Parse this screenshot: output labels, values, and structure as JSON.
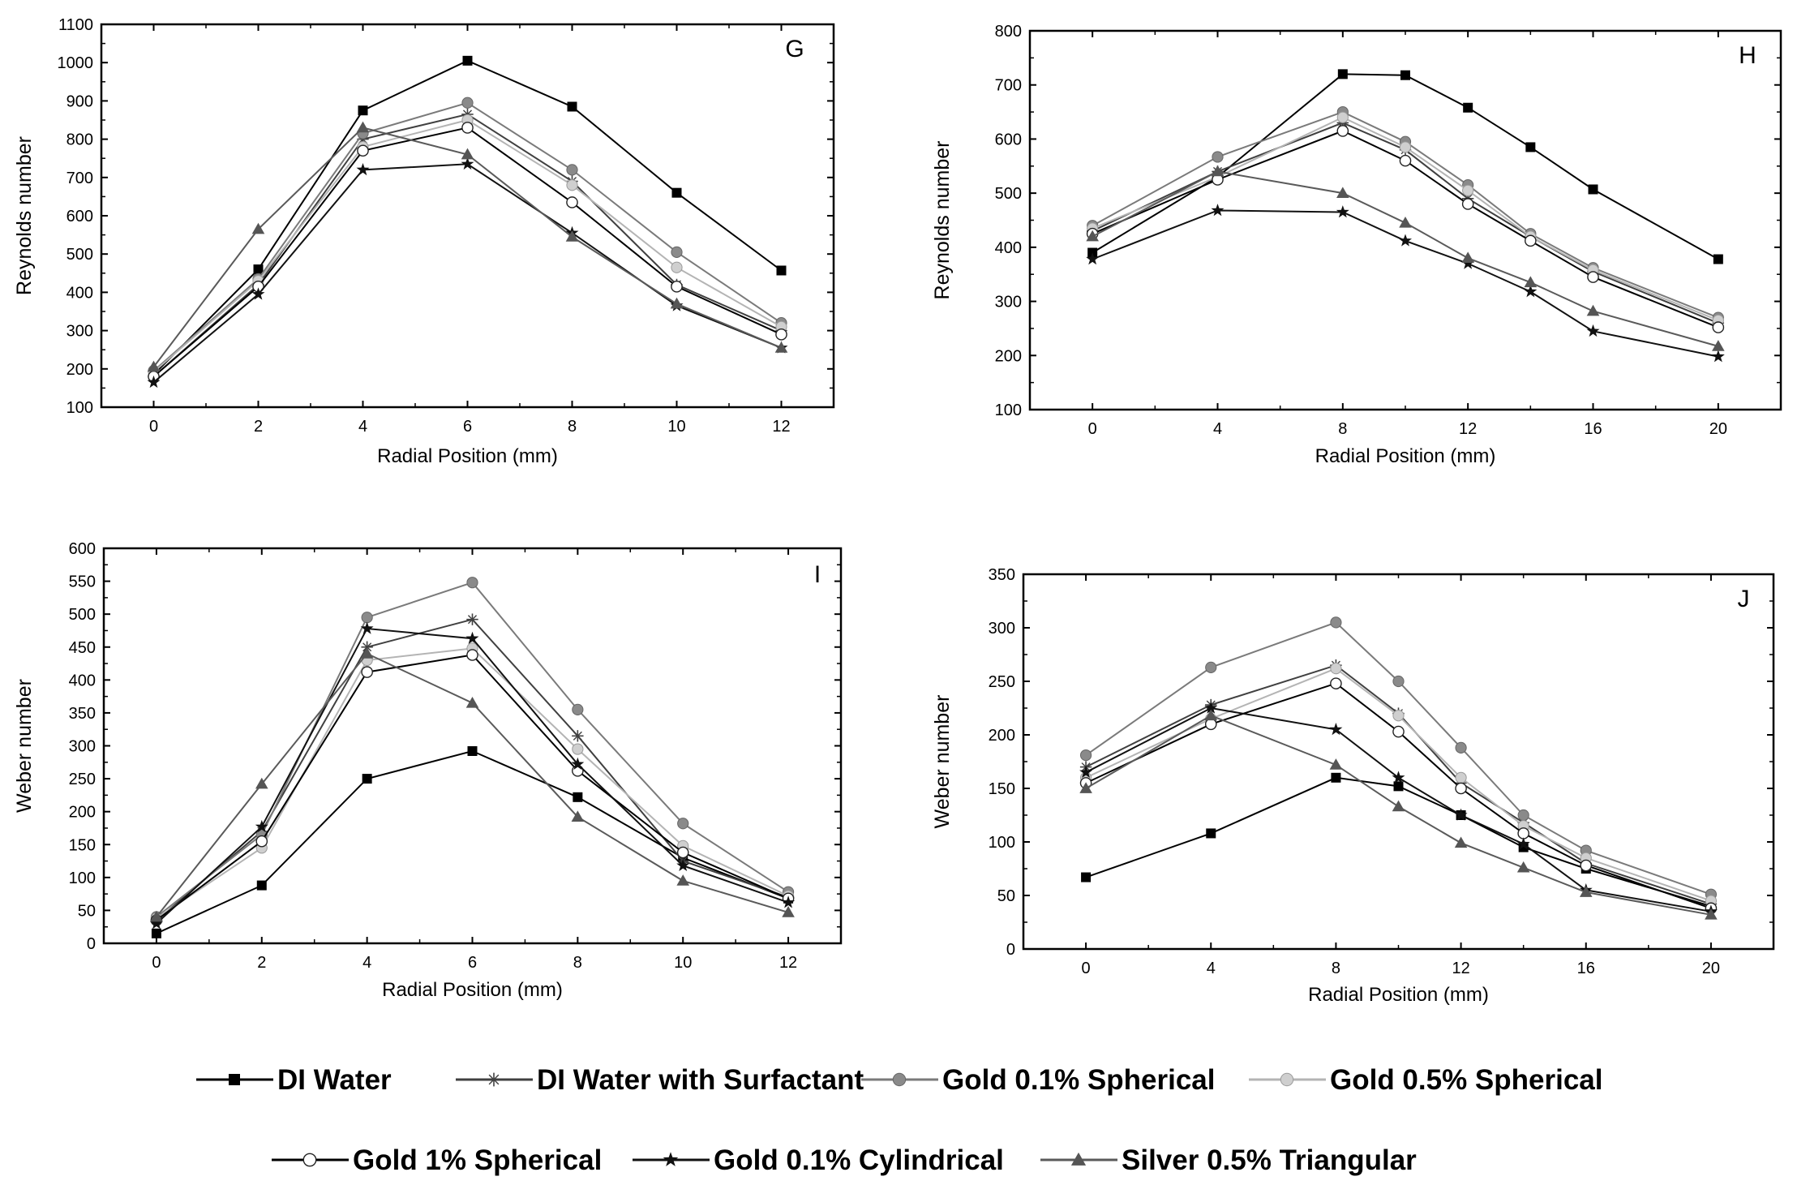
{
  "legend": [
    {
      "key": "dw",
      "label": "DI Water",
      "color": "#000000",
      "marker": "square"
    },
    {
      "key": "dws",
      "label": "DI Water with Surfactant",
      "color": "#404040",
      "marker": "plus"
    },
    {
      "key": "g01s",
      "label": "Gold 0.1% Spherical",
      "color": "#7a7a7a",
      "marker": "circle-filled"
    },
    {
      "key": "g05s",
      "label": "Gold 0.5% Spherical",
      "color": "#b4b4b4",
      "marker": "circle-light"
    },
    {
      "key": "g1s",
      "label": "Gold 1% Spherical",
      "color": "#000000",
      "marker": "circle-open"
    },
    {
      "key": "g01c",
      "label": "Gold 0.1% Cylindrical",
      "color": "#111111",
      "marker": "star"
    },
    {
      "key": "s05t",
      "label": "Silver 0.5% Triangular",
      "color": "#5a5a5a",
      "marker": "triangle"
    }
  ],
  "chart_data": [
    {
      "type": "line",
      "panel": "G",
      "xlabel": "Radial Position (mm)",
      "ylabel": "Reynolds number",
      "x": [
        0,
        2,
        4,
        6,
        8,
        10,
        12
      ],
      "xlim": [
        -1,
        13
      ],
      "ylim": [
        100,
        1100
      ],
      "xticks": [
        0,
        2,
        4,
        6,
        8,
        10,
        12
      ],
      "yticks": [
        100,
        200,
        300,
        400,
        500,
        600,
        700,
        800,
        900,
        1000,
        1100
      ],
      "series": [
        {
          "key": "dw",
          "name": "DI Water",
          "values": [
            185,
            460,
            875,
            1005,
            885,
            660,
            457
          ]
        },
        {
          "key": "dws",
          "name": "DI Water with Surfactant",
          "values": [
            180,
            420,
            800,
            865,
            690,
            420,
            300
          ]
        },
        {
          "key": "g01s",
          "name": "Gold 0.1% Spherical",
          "values": [
            195,
            435,
            815,
            895,
            720,
            505,
            320
          ]
        },
        {
          "key": "g05s",
          "name": "Gold 0.5% Spherical",
          "values": [
            192,
            430,
            780,
            850,
            680,
            465,
            310
          ]
        },
        {
          "key": "g1s",
          "name": "Gold 1% Spherical",
          "values": [
            180,
            415,
            770,
            830,
            635,
            415,
            290
          ]
        },
        {
          "key": "g01c",
          "name": "Gold 0.1% Cylindrical",
          "values": [
            165,
            395,
            720,
            735,
            555,
            365,
            255
          ]
        },
        {
          "key": "s05t",
          "name": "Silver 0.5% Triangular",
          "values": [
            205,
            565,
            830,
            760,
            545,
            370,
            255
          ]
        }
      ]
    },
    {
      "type": "line",
      "panel": "H",
      "xlabel": "Radial Position (mm)",
      "ylabel": "Reynolds number",
      "x": [
        0,
        4,
        8,
        10,
        12,
        14,
        16,
        20
      ],
      "xlim": [
        -2,
        22
      ],
      "ylim": [
        100,
        800
      ],
      "xticks": [
        0,
        4,
        8,
        12,
        16,
        20
      ],
      "yticks": [
        100,
        200,
        300,
        400,
        500,
        600,
        700,
        800
      ],
      "series": [
        {
          "key": "dw",
          "name": "DI Water",
          "values": [
            390,
            530,
            720,
            718,
            658,
            585,
            507,
            378
          ]
        },
        {
          "key": "dws",
          "name": "DI Water with Surfactant",
          "values": [
            430,
            540,
            630,
            580,
            490,
            420,
            355,
            260
          ]
        },
        {
          "key": "g01s",
          "name": "Gold 0.1% Spherical",
          "values": [
            440,
            567,
            650,
            595,
            515,
            425,
            362,
            270
          ]
        },
        {
          "key": "g05s",
          "name": "Gold 0.5% Spherical",
          "values": [
            435,
            530,
            640,
            585,
            505,
            420,
            358,
            265
          ]
        },
        {
          "key": "g1s",
          "name": "Gold 1% Spherical",
          "values": [
            425,
            525,
            615,
            560,
            480,
            412,
            345,
            252
          ]
        },
        {
          "key": "g01c",
          "name": "Gold 0.1% Cylindrical",
          "values": [
            378,
            468,
            465,
            412,
            370,
            318,
            245,
            198
          ]
        },
        {
          "key": "s05t",
          "name": "Silver 0.5% Triangular",
          "values": [
            420,
            540,
            500,
            445,
            380,
            335,
            282,
            217
          ]
        }
      ]
    },
    {
      "type": "line",
      "panel": "I",
      "xlabel": "Radial Position (mm)",
      "ylabel": "Weber number",
      "x": [
        0,
        2,
        4,
        6,
        8,
        10,
        12
      ],
      "xlim": [
        -1,
        13
      ],
      "ylim": [
        0,
        600
      ],
      "xticks": [
        0,
        2,
        4,
        6,
        8,
        10,
        12
      ],
      "yticks": [
        0,
        50,
        100,
        150,
        200,
        250,
        300,
        350,
        400,
        450,
        500,
        550,
        600
      ],
      "series": [
        {
          "key": "dw",
          "name": "DI Water",
          "values": [
            15,
            88,
            250,
            292,
            222,
            130,
            68
          ]
        },
        {
          "key": "dws",
          "name": "DI Water with Surfactant",
          "values": [
            35,
            170,
            450,
            492,
            315,
            125,
            70
          ]
        },
        {
          "key": "g01s",
          "name": "Gold 0.1% Spherical",
          "values": [
            40,
            165,
            495,
            548,
            355,
            182,
            78
          ]
        },
        {
          "key": "g05s",
          "name": "Gold 0.5% Spherical",
          "values": [
            38,
            145,
            430,
            448,
            295,
            148,
            72
          ]
        },
        {
          "key": "g1s",
          "name": "Gold 1% Spherical",
          "values": [
            35,
            155,
            412,
            438,
            262,
            138,
            68
          ]
        },
        {
          "key": "g01c",
          "name": "Gold 0.1% Cylindrical",
          "values": [
            30,
            177,
            478,
            463,
            272,
            118,
            62
          ]
        },
        {
          "key": "s05t",
          "name": "Silver 0.5% Triangular",
          "values": [
            40,
            242,
            440,
            365,
            192,
            95,
            47
          ]
        }
      ]
    },
    {
      "type": "line",
      "panel": "J",
      "xlabel": "Radial Position (mm)",
      "ylabel": "Weber number",
      "x": [
        0,
        4,
        8,
        10,
        12,
        14,
        16,
        20
      ],
      "xlim": [
        -2,
        22
      ],
      "ylim": [
        0,
        350
      ],
      "xticks": [
        0,
        4,
        8,
        12,
        16,
        20
      ],
      "yticks": [
        0,
        50,
        100,
        150,
        200,
        250,
        300,
        350
      ],
      "series": [
        {
          "key": "dw",
          "name": "DI Water",
          "values": [
            67,
            108,
            160,
            152,
            125,
            95,
            75,
            40
          ]
        },
        {
          "key": "dws",
          "name": "DI Water with Surfactant",
          "values": [
            170,
            228,
            265,
            220,
            155,
            118,
            80,
            42
          ]
        },
        {
          "key": "g01s",
          "name": "Gold 0.1% Spherical",
          "values": [
            181,
            263,
            305,
            250,
            188,
            125,
            92,
            51
          ]
        },
        {
          "key": "g05s",
          "name": "Gold 0.5% Spherical",
          "values": [
            160,
            215,
            262,
            218,
            160,
            115,
            85,
            45
          ]
        },
        {
          "key": "g1s",
          "name": "Gold 1% Spherical",
          "values": [
            155,
            210,
            248,
            203,
            150,
            108,
            78,
            38
          ]
        },
        {
          "key": "g01c",
          "name": "Gold 0.1% Cylindrical",
          "values": [
            165,
            225,
            205,
            160,
            125,
            98,
            55,
            35
          ]
        },
        {
          "key": "s05t",
          "name": "Silver 0.5% Triangular",
          "values": [
            150,
            218,
            172,
            133,
            99,
            76,
            53,
            32
          ]
        }
      ]
    }
  ]
}
